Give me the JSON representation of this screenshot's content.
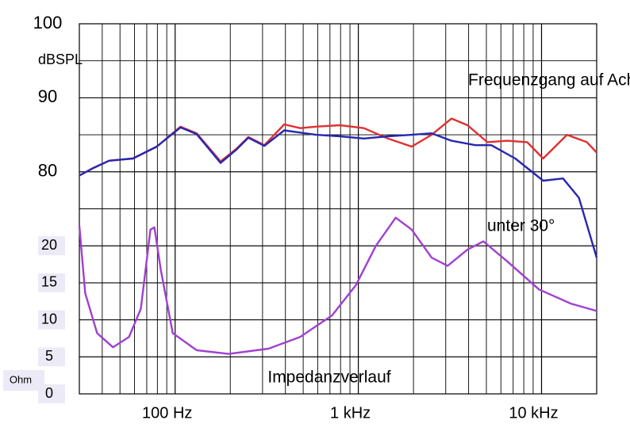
{
  "chart_data": {
    "type": "line",
    "y_label": "dBSPL",
    "y2_label": "Ohm",
    "xlim": [
      30,
      20000
    ],
    "xscale": "log",
    "xticks": [
      {
        "value": 100,
        "label": "100 Hz"
      },
      {
        "value": 1000,
        "label": "1 kHz"
      },
      {
        "value": 10000,
        "label": "10 kHz"
      }
    ],
    "ylim": [
      50,
      100
    ],
    "yticks": [
      80,
      90,
      100
    ],
    "y2lim": [
      0,
      50
    ],
    "y2ticks": [
      0,
      5,
      10,
      15,
      20
    ],
    "grid": true,
    "series": [
      {
        "name": "Frequenzgang auf Achse",
        "color": "#e03030",
        "x": [
          30,
          35.7,
          43.6,
          58.8,
          79.4,
          107,
          131,
          177,
          216,
          251,
          307,
          394,
          482,
          588,
          794,
          1072,
          1449,
          1955,
          2512,
          3227,
          3943,
          5060,
          6503,
          8350,
          10200,
          13770,
          17700,
          20000
        ],
        "values": [
          79.5,
          80.5,
          81.5,
          81.8,
          83.4,
          86.1,
          85.2,
          81.4,
          83.1,
          84.7,
          83.6,
          86.4,
          85.9,
          86.1,
          86.3,
          85.9,
          84.5,
          83.4,
          85.0,
          87.2,
          86.3,
          84.0,
          84.2,
          84.0,
          81.8,
          85.0,
          84.0,
          82.6
        ]
      },
      {
        "name": "unter 30°",
        "color": "#2828b0",
        "x": [
          30,
          35.7,
          43.6,
          58.8,
          79.4,
          107,
          131,
          177,
          216,
          251,
          307,
          394,
          588,
          794,
          1072,
          1449,
          1955,
          2512,
          3227,
          4357,
          5321,
          7189,
          10200,
          13100,
          16000,
          20000
        ],
        "values": [
          79.5,
          80.5,
          81.5,
          81.8,
          83.4,
          86.0,
          85.1,
          81.2,
          83.0,
          84.6,
          83.5,
          85.6,
          85.0,
          84.8,
          84.5,
          84.8,
          85.0,
          85.2,
          84.2,
          83.6,
          83.6,
          81.8,
          78.8,
          79.1,
          76.5,
          68.4
        ]
      },
      {
        "name": "Impedanzverlauf",
        "color": "#a040d0",
        "axis": "y2",
        "x": [
          30,
          32.3,
          37.5,
          45.8,
          56.0,
          65.0,
          73.3,
          77.1,
          83.5,
          97,
          131,
          196,
          323,
          482,
          719,
          970,
          1247,
          1600,
          1955,
          2512,
          3069,
          3943,
          4816,
          6503,
          9700,
          14460,
          20000
        ],
        "values": [
          22.7,
          13.6,
          8.2,
          6.3,
          7.7,
          11.5,
          22.2,
          22.5,
          16.8,
          8.2,
          5.9,
          5.4,
          6.1,
          7.7,
          10.6,
          14.7,
          20.0,
          23.8,
          22.2,
          18.4,
          17.3,
          19.5,
          20.6,
          17.9,
          14.1,
          12.2,
          11.2
        ]
      }
    ]
  }
}
